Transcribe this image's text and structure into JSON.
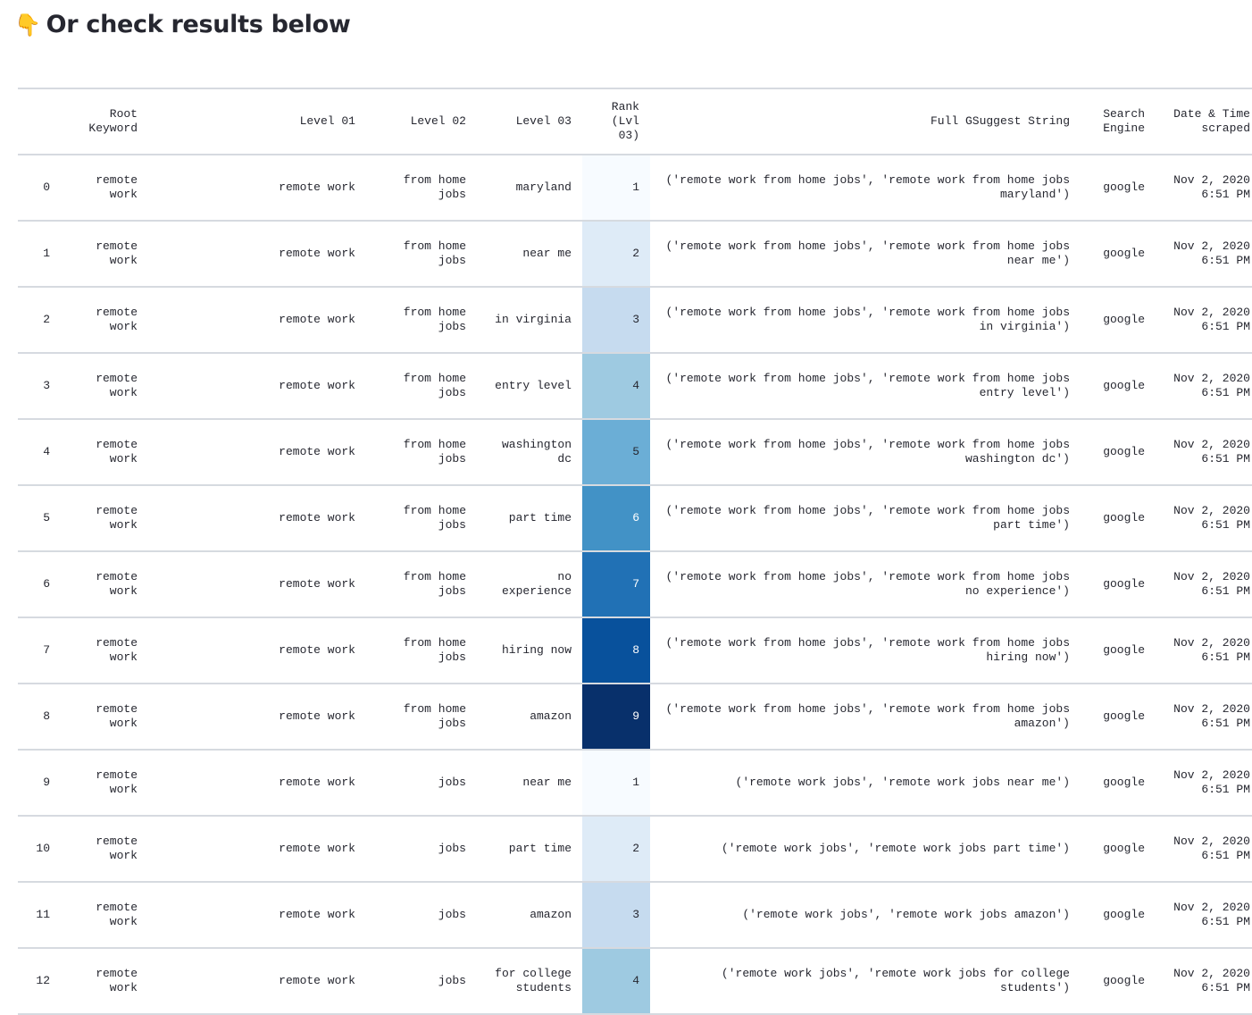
{
  "heading": {
    "emoji": "👇",
    "text": "Or check results below"
  },
  "table": {
    "columns": [
      "",
      "Root Keyword",
      "Level 01",
      "Level 02",
      "Level 03",
      "Rank (Lvl 03)",
      "Full GSuggest String",
      "Search Engine",
      "Date & Time scraped"
    ],
    "rank_color_scale": [
      "#f7fbff",
      "#deebf7",
      "#c6dbef",
      "#9ecae1",
      "#6baed6",
      "#4292c6",
      "#2171b5",
      "#08519c",
      "#08306b"
    ],
    "rows": [
      {
        "idx": "0",
        "root": "remote work",
        "l1": "remote work",
        "l2": "from home jobs",
        "l3": "maryland",
        "rank": 1,
        "full": "('remote work from home jobs', 'remote work from home jobs maryland')",
        "engine": "google",
        "date": "Nov 2, 2020 6:51 PM"
      },
      {
        "idx": "1",
        "root": "remote work",
        "l1": "remote work",
        "l2": "from home jobs",
        "l3": "near me",
        "rank": 2,
        "full": "('remote work from home jobs', 'remote work from home jobs near me')",
        "engine": "google",
        "date": "Nov 2, 2020 6:51 PM"
      },
      {
        "idx": "2",
        "root": "remote work",
        "l1": "remote work",
        "l2": "from home jobs",
        "l3": "in virginia",
        "rank": 3,
        "full": "('remote work from home jobs', 'remote work from home jobs in virginia')",
        "engine": "google",
        "date": "Nov 2, 2020 6:51 PM"
      },
      {
        "idx": "3",
        "root": "remote work",
        "l1": "remote work",
        "l2": "from home jobs",
        "l3": "entry level",
        "rank": 4,
        "full": "('remote work from home jobs', 'remote work from home jobs entry level')",
        "engine": "google",
        "date": "Nov 2, 2020 6:51 PM"
      },
      {
        "idx": "4",
        "root": "remote work",
        "l1": "remote work",
        "l2": "from home jobs",
        "l3": "washington dc",
        "rank": 5,
        "full": "('remote work from home jobs', 'remote work from home jobs washington dc')",
        "engine": "google",
        "date": "Nov 2, 2020 6:51 PM"
      },
      {
        "idx": "5",
        "root": "remote work",
        "l1": "remote work",
        "l2": "from home jobs",
        "l3": "part time",
        "rank": 6,
        "full": "('remote work from home jobs', 'remote work from home jobs part time')",
        "engine": "google",
        "date": "Nov 2, 2020 6:51 PM"
      },
      {
        "idx": "6",
        "root": "remote work",
        "l1": "remote work",
        "l2": "from home jobs",
        "l3": "no experience",
        "rank": 7,
        "full": "('remote work from home jobs', 'remote work from home jobs no experience')",
        "engine": "google",
        "date": "Nov 2, 2020 6:51 PM"
      },
      {
        "idx": "7",
        "root": "remote work",
        "l1": "remote work",
        "l2": "from home jobs",
        "l3": "hiring now",
        "rank": 8,
        "full": "('remote work from home jobs', 'remote work from home jobs hiring now')",
        "engine": "google",
        "date": "Nov 2, 2020 6:51 PM"
      },
      {
        "idx": "8",
        "root": "remote work",
        "l1": "remote work",
        "l2": "from home jobs",
        "l3": "amazon",
        "rank": 9,
        "full": "('remote work from home jobs', 'remote work from home jobs amazon')",
        "engine": "google",
        "date": "Nov 2, 2020 6:51 PM"
      },
      {
        "idx": "9",
        "root": "remote work",
        "l1": "remote work",
        "l2": "jobs",
        "l3": "near me",
        "rank": 1,
        "full": "('remote work jobs', 'remote work jobs near me')",
        "engine": "google",
        "date": "Nov 2, 2020 6:51 PM"
      },
      {
        "idx": "10",
        "root": "remote work",
        "l1": "remote work",
        "l2": "jobs",
        "l3": "part time",
        "rank": 2,
        "full": "('remote work jobs', 'remote work jobs part time')",
        "engine": "google",
        "date": "Nov 2, 2020 6:51 PM"
      },
      {
        "idx": "11",
        "root": "remote work",
        "l1": "remote work",
        "l2": "jobs",
        "l3": "amazon",
        "rank": 3,
        "full": "('remote work jobs', 'remote work jobs amazon')",
        "engine": "google",
        "date": "Nov 2, 2020 6:51 PM"
      },
      {
        "idx": "12",
        "root": "remote work",
        "l1": "remote work",
        "l2": "jobs",
        "l3": "for college students",
        "rank": 4,
        "full": "('remote work jobs', 'remote work jobs for college students')",
        "engine": "google",
        "date": "Nov 2, 2020 6:51 PM"
      }
    ]
  }
}
